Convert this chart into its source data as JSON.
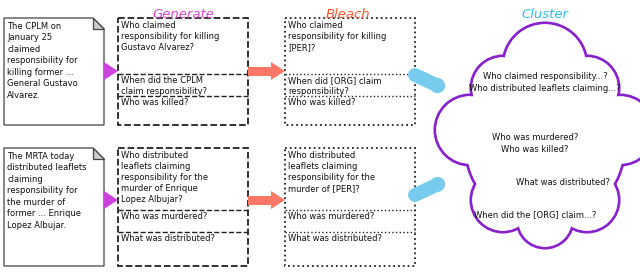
{
  "title_generate": "Generate",
  "title_bleach": "Bleach",
  "title_cluster": "Cluster",
  "title_generate_color": "#dd44cc",
  "title_bleach_color": "#ff5533",
  "title_cluster_color": "#33bbee",
  "bg_color": "#ffffff",
  "doc1_text": "The CPLM on\nJanuary 25\nclaimed\nresponsibility for\nkilling former ...\nGeneral Gustavo\nAlvarez.",
  "doc2_text": "The MRTA today\ndistributed leaflets\nclaiming\nresponsibility for\nthe murder of\nformer ... Enrique\nLopez Albujar.",
  "gen_box1_q1": "Who claimed\nresponsibility for killing\nGustavo Alvarez?",
  "gen_box1_q2": "When did the CPLM\nclaim responsibility?",
  "gen_box1_q3": "Who was killed?",
  "gen_box2_q1": "Who distributed\nleaflets claiming\nresponsibility for the\nmurder of Enrique\nLopez Albujar?",
  "gen_box2_q2": "Who was murdered?",
  "gen_box2_q3": "What was distributed?",
  "bleach_box1_q1": "Who claimed\nresponsibility for killing\n[PER]?",
  "bleach_box1_q2": "When did [ORG] claim\nresponsibility?",
  "bleach_box1_q3": "Who was killed?",
  "bleach_box2_q1": "Who distributed\nleaflets claiming\nresponsibility for the\nmurder of [PER]?",
  "bleach_box2_q2": "Who was murdered?",
  "bleach_box2_q3": "What was distributed?",
  "cluster_q1": "Who claimed responsibility...?\nWho distributed leaflets claiming...?",
  "cluster_q2": "Who was murdered?\nWho was killed?",
  "cluster_q3": "What was distributed?",
  "cluster_q4": "When did the [ORG] claim...?",
  "arrow_pink_color": "#cc44dd",
  "arrow_red_color": "#ff7766",
  "arrow_blue_color": "#77ccee",
  "cloud_color": "#8822cc",
  "text_color_dark": "#111111"
}
